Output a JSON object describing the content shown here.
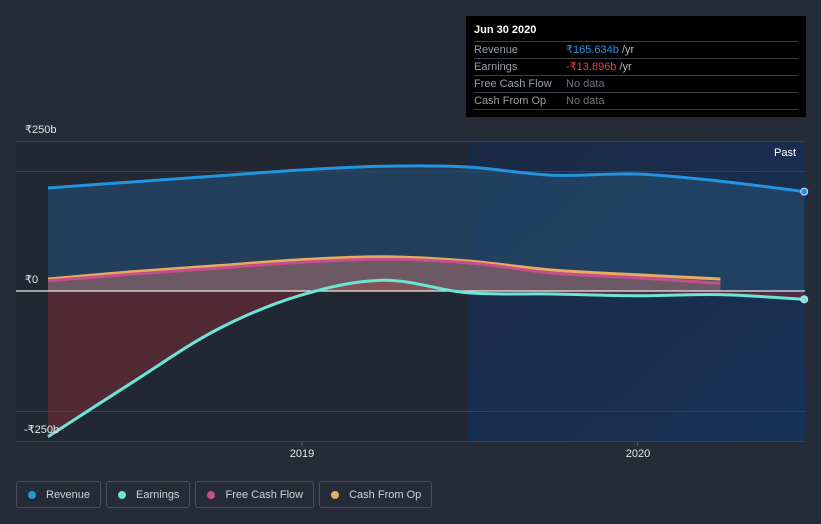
{
  "chart_data": {
    "type": "line",
    "title": "",
    "xlabel": "",
    "ylabel": "",
    "x": [
      "2018-03-31",
      "2018-06-30",
      "2018-09-30",
      "2018-12-31",
      "2019-03-31",
      "2019-06-30",
      "2019-09-30",
      "2019-12-31",
      "2020-03-31",
      "2020-06-30"
    ],
    "x_ticks": [
      {
        "label": "2019",
        "date": "2019-01-01"
      },
      {
        "label": "2020",
        "date": "2020-01-01"
      }
    ],
    "y_ticks": [
      {
        "label": "₹250b",
        "value": 250
      },
      {
        "label": "₹0",
        "value": 0
      },
      {
        "label": "-₹250b",
        "value": -250
      }
    ],
    "ylim": [
      -250,
      250
    ],
    "grid": true,
    "region_label": "Past",
    "series": [
      {
        "name": "Revenue",
        "color": "#2394df",
        "values": [
          171.7,
          181.7,
          191.7,
          201.7,
          208.0,
          206.7,
          193.0,
          195.0,
          183.0,
          165.634
        ]
      },
      {
        "name": "Earnings",
        "color": "#6ce5d2",
        "values": [
          -243,
          -153,
          -65,
          -7,
          18,
          -3,
          -5,
          -8,
          -6,
          -13.896
        ]
      },
      {
        "name": "Free Cash Flow",
        "color": "#c64d8e",
        "values": [
          17,
          28,
          38,
          48,
          53,
          47,
          30,
          22,
          13,
          null
        ]
      },
      {
        "name": "Cash From Op",
        "color": "#e8ad5c",
        "values": [
          20,
          32,
          42,
          52,
          57,
          50,
          35,
          27,
          20,
          null
        ]
      }
    ]
  },
  "tooltip": {
    "date": "Jun 30 2020",
    "rows": [
      {
        "label": "Revenue",
        "value": "₹165.634b",
        "unit": "/yr",
        "color": "#2394df"
      },
      {
        "label": "Earnings",
        "value": "-₹13.896b",
        "unit": "/yr",
        "color": "#e64545"
      },
      {
        "label": "Free Cash Flow",
        "value": "No data",
        "unit": "",
        "color": "#6e747c"
      },
      {
        "label": "Cash From Op",
        "value": "No data",
        "unit": "",
        "color": "#6e747c"
      }
    ]
  },
  "legend": [
    {
      "label": "Revenue",
      "color": "#2394df"
    },
    {
      "label": "Earnings",
      "color": "#6ce5d2"
    },
    {
      "label": "Free Cash Flow",
      "color": "#c64d8e"
    },
    {
      "label": "Cash From Op",
      "color": "#e8ad5c"
    }
  ]
}
